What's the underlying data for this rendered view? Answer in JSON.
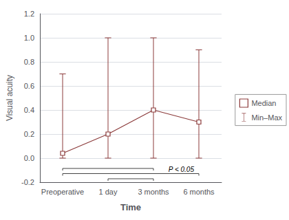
{
  "chart_data": {
    "type": "line",
    "xlabel": "Time",
    "ylabel": "Visual acuity",
    "categories": [
      "Preoperative",
      "1 day",
      "3 months",
      "6 months"
    ],
    "color": "#8B3A3A",
    "series": [
      {
        "name": "Median",
        "values": [
          0.04,
          0.2,
          0.4,
          0.3
        ],
        "marker": "square"
      }
    ],
    "error_bars": {
      "name": "Min–Max",
      "low": [
        0.0,
        0.0,
        0.0,
        0.0
      ],
      "high": [
        0.7,
        1.0,
        1.0,
        0.9
      ]
    },
    "brackets": [
      {
        "from": "Preoperative",
        "to": "3 months",
        "color": "#444444"
      },
      {
        "from": "Preoperative",
        "to": "6 months",
        "color": "#444444",
        "label": "P < 0.05"
      },
      {
        "from": "1 day",
        "to": "3 months",
        "color": "#444444"
      }
    ],
    "ylim": [
      -0.2,
      1.2
    ],
    "yticks": [
      -0.2,
      {
        "value": 0,
        "label": "0.0"
      },
      0.2,
      0.4,
      0.6,
      0.8,
      {
        "value": 1,
        "label": "1.0"
      },
      1.2
    ],
    "grid": true,
    "legend": "right"
  }
}
